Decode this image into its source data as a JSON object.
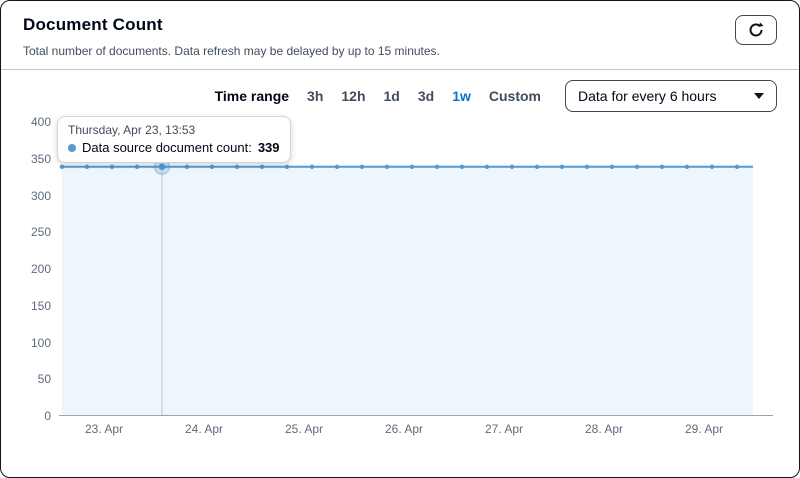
{
  "header": {
    "title": "Document Count",
    "subtitle": "Total number of documents. Data refresh may be delayed by up to 15 minutes."
  },
  "controls": {
    "time_range_label": "Time range",
    "time_range_options": [
      {
        "label": "3h",
        "active": false
      },
      {
        "label": "12h",
        "active": false
      },
      {
        "label": "1d",
        "active": false
      },
      {
        "label": "3d",
        "active": false
      },
      {
        "label": "1w",
        "active": true
      },
      {
        "label": "Custom",
        "active": false
      }
    ],
    "granularity_dropdown": {
      "value": "Data for every 6 hours"
    }
  },
  "tooltip": {
    "date": "Thursday, Apr 23, 13:53",
    "series_label": "Data source document count:",
    "value": "339"
  },
  "chart_data": {
    "type": "line",
    "title": "Document Count",
    "xlabel": "",
    "ylabel": "",
    "ylim": [
      0,
      400
    ],
    "y_ticks": [
      0,
      50,
      100,
      150,
      200,
      250,
      300,
      350,
      400
    ],
    "x_tick_labels": [
      "23. Apr",
      "24. Apr",
      "25. Apr",
      "26. Apr",
      "27. Apr",
      "28. Apr",
      "29. Apr"
    ],
    "x_tick_days": [
      0,
      1,
      2,
      3,
      4,
      5,
      6
    ],
    "x_domain_days": [
      -0.45,
      6.69
    ],
    "grid": false,
    "legend_position": "none",
    "interval": "every 6 hours",
    "series": [
      {
        "name": "Data source document count",
        "x_start_day": -0.42,
        "x_step_day": 0.25,
        "values": [
          339,
          339,
          339,
          339,
          339,
          339,
          339,
          339,
          339,
          339,
          339,
          339,
          339,
          339,
          339,
          339,
          339,
          339,
          339,
          339,
          339,
          339,
          339,
          339,
          339,
          339,
          339,
          339
        ]
      }
    ],
    "highlight_index": 4,
    "colors": {
      "line": "#5699d1",
      "area": "#edf6fc",
      "axis_line": "#9aa5b1",
      "hover_line": "#b8c4d0",
      "tick_text": "#5f6b7a",
      "active_option": "#0972d3"
    }
  }
}
